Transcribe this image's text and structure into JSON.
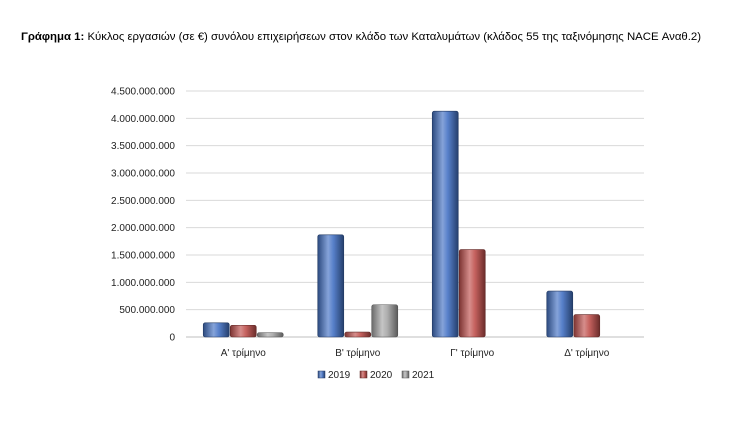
{
  "caption": {
    "prefix": "Γράφημα 1:",
    "text": " Κύκλος εργασιών (σε €) συνόλου επιχειρήσεων στον κλάδο των Καταλυμάτων (κλάδος 55 της ταξινόμησης NACE Αναθ.2)"
  },
  "colors": {
    "2019": "#4472c4",
    "2020": "#c0504d",
    "2021": "#a5a5a5"
  },
  "chart_data": {
    "type": "bar",
    "title": "",
    "xlabel": "",
    "ylabel": "",
    "categories": [
      "Α' τρίμηνο",
      "Β' τρίμηνο",
      "Γ' τρίμηνο",
      "Δ' τρίμηνο"
    ],
    "series": [
      {
        "name": "2019",
        "values": [
          260000000,
          1870000000,
          4130000000,
          840000000
        ]
      },
      {
        "name": "2020",
        "values": [
          215000000,
          90000000,
          1600000000,
          410000000
        ]
      },
      {
        "name": "2021",
        "values": [
          80000000,
          590000000,
          0,
          0
        ]
      }
    ],
    "ylim": [
      0,
      4500000000
    ],
    "yticks": [
      0,
      500000000,
      1000000000,
      1500000000,
      2000000000,
      2500000000,
      3000000000,
      3500000000,
      4000000000,
      4500000000
    ],
    "ytick_labels": [
      "0",
      "500.000.000",
      "1.000.000.000",
      "1.500.000.000",
      "2.000.000.000",
      "2.500.000.000",
      "3.000.000.000",
      "3.500.000.000",
      "4.000.000.000",
      "4.500.000.000"
    ],
    "grid": true,
    "legend_position": "bottom"
  }
}
